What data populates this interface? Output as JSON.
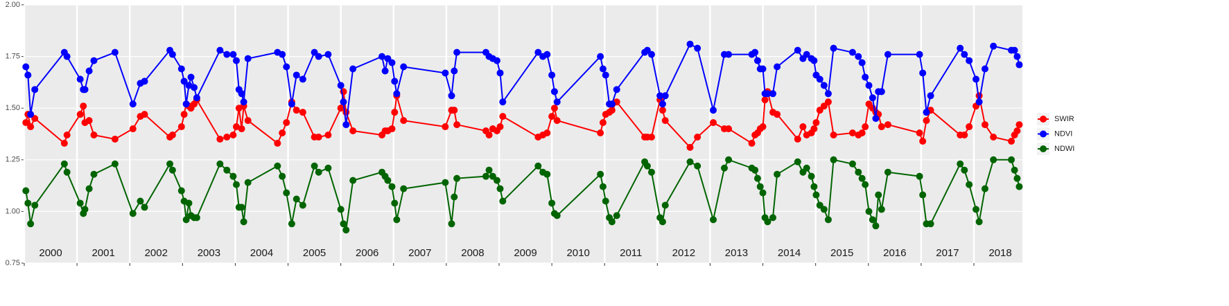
{
  "chart_data": {
    "type": "line",
    "x": [
      2000.03,
      2000.07,
      2000.12,
      2000.2,
      2000.76,
      2000.81,
      2001.06,
      2001.12,
      2001.15,
      2001.23,
      2001.32,
      2001.72,
      2002.06,
      2002.2,
      2002.28,
      2002.76,
      2002.81,
      2002.98,
      2003.03,
      2003.07,
      2003.12,
      2003.16,
      2003.22,
      2003.27,
      2003.71,
      2003.84,
      2003.96,
      2004.02,
      2004.07,
      2004.12,
      2004.16,
      2004.24,
      2004.8,
      2004.89,
      2004.97,
      2005.07,
      2005.16,
      2005.28,
      2005.5,
      2005.58,
      2005.76,
      2006.0,
      2006.05,
      2006.1,
      2006.23,
      2006.78,
      2006.84,
      2006.89,
      2006.97,
      2007.02,
      2007.06,
      2007.19,
      2007.98,
      2008.1,
      2008.15,
      2008.2,
      2008.75,
      2008.81,
      2008.88,
      2008.96,
      2009.02,
      2009.07,
      2009.74,
      2009.83,
      2009.91,
      2010.0,
      2010.05,
      2010.1,
      2010.92,
      2010.97,
      2011.02,
      2011.09,
      2011.14,
      2011.23,
      2011.76,
      2011.81,
      2011.89,
      2012.05,
      2012.1,
      2012.15,
      2012.62,
      2012.76,
      2013.06,
      2013.27,
      2013.35,
      2013.79,
      2013.85,
      2013.9,
      2013.95,
      2014.0,
      2014.04,
      2014.09,
      2014.19,
      2014.27,
      2014.66,
      2014.76,
      2014.83,
      2014.92,
      2014.97,
      2015.01,
      2015.08,
      2015.16,
      2015.24,
      2015.34,
      2015.7,
      2015.81,
      2015.88,
      2015.94,
      2016.01,
      2016.08,
      2016.14,
      2016.19,
      2016.25,
      2016.37,
      2016.97,
      2017.03,
      2017.1,
      2017.18,
      2017.74,
      2017.82,
      2017.91,
      2018.04,
      2018.1,
      2018.21,
      2018.37,
      2018.71,
      2018.77,
      2018.82,
      2018.86
    ],
    "series": [
      {
        "name": "SWIR",
        "color": "#ff0000",
        "values": [
          1.43,
          1.47,
          1.41,
          1.45,
          1.33,
          1.37,
          1.47,
          1.51,
          1.43,
          1.44,
          1.37,
          1.35,
          1.4,
          1.46,
          1.47,
          1.36,
          1.37,
          1.41,
          1.47,
          1.52,
          1.51,
          1.5,
          1.52,
          1.54,
          1.35,
          1.36,
          1.37,
          1.41,
          1.5,
          1.4,
          1.51,
          1.44,
          1.33,
          1.38,
          1.43,
          1.53,
          1.49,
          1.48,
          1.36,
          1.36,
          1.37,
          1.5,
          1.58,
          1.48,
          1.39,
          1.37,
          1.39,
          1.39,
          1.4,
          1.48,
          1.56,
          1.44,
          1.41,
          1.49,
          1.49,
          1.42,
          1.39,
          1.37,
          1.4,
          1.39,
          1.41,
          1.46,
          1.36,
          1.37,
          1.38,
          1.46,
          1.5,
          1.44,
          1.38,
          1.43,
          1.47,
          1.48,
          1.49,
          1.53,
          1.36,
          1.36,
          1.36,
          1.54,
          1.49,
          1.44,
          1.31,
          1.36,
          1.43,
          1.4,
          1.4,
          1.33,
          1.37,
          1.38,
          1.4,
          1.41,
          1.54,
          1.58,
          1.48,
          1.47,
          1.35,
          1.41,
          1.37,
          1.38,
          1.4,
          1.43,
          1.49,
          1.51,
          1.53,
          1.37,
          1.38,
          1.37,
          1.38,
          1.41,
          1.52,
          1.5,
          1.48,
          1.47,
          1.41,
          1.42,
          1.38,
          1.34,
          1.44,
          1.49,
          1.37,
          1.37,
          1.41,
          1.51,
          1.56,
          1.42,
          1.36,
          1.34,
          1.37,
          1.39,
          1.42
        ]
      },
      {
        "name": "NDVI",
        "color": "#0000ff",
        "values": [
          1.7,
          1.66,
          1.47,
          1.59,
          1.77,
          1.75,
          1.64,
          1.59,
          1.59,
          1.68,
          1.73,
          1.77,
          1.52,
          1.62,
          1.63,
          1.78,
          1.76,
          1.69,
          1.63,
          1.52,
          1.61,
          1.65,
          1.6,
          1.55,
          1.78,
          1.76,
          1.76,
          1.73,
          1.59,
          1.57,
          1.53,
          1.74,
          1.77,
          1.76,
          1.7,
          1.52,
          1.66,
          1.64,
          1.77,
          1.75,
          1.76,
          1.61,
          1.53,
          1.42,
          1.69,
          1.75,
          1.68,
          1.74,
          1.72,
          1.63,
          1.57,
          1.7,
          1.67,
          1.56,
          1.68,
          1.77,
          1.77,
          1.75,
          1.74,
          1.73,
          1.67,
          1.53,
          1.77,
          1.75,
          1.76,
          1.66,
          1.58,
          1.53,
          1.75,
          1.69,
          1.66,
          1.52,
          1.52,
          1.59,
          1.77,
          1.78,
          1.76,
          1.56,
          1.52,
          1.56,
          1.81,
          1.79,
          1.49,
          1.76,
          1.76,
          1.76,
          1.77,
          1.73,
          1.69,
          1.69,
          1.57,
          1.57,
          1.57,
          1.7,
          1.78,
          1.74,
          1.76,
          1.74,
          1.73,
          1.66,
          1.64,
          1.61,
          1.57,
          1.79,
          1.77,
          1.75,
          1.72,
          1.65,
          1.61,
          1.55,
          1.45,
          1.58,
          1.58,
          1.76,
          1.76,
          1.67,
          1.48,
          1.56,
          1.79,
          1.76,
          1.73,
          1.64,
          1.53,
          1.69,
          1.8,
          1.78,
          1.78,
          1.75,
          1.71
        ]
      },
      {
        "name": "NDWI",
        "color": "#006400",
        "values": [
          1.1,
          1.04,
          0.94,
          1.03,
          1.23,
          1.19,
          1.04,
          0.99,
          1.01,
          1.11,
          1.18,
          1.23,
          0.99,
          1.05,
          1.02,
          1.23,
          1.2,
          1.1,
          1.05,
          0.96,
          1.04,
          0.98,
          0.97,
          0.97,
          1.23,
          1.2,
          1.17,
          1.13,
          1.02,
          1.02,
          0.95,
          1.14,
          1.22,
          1.17,
          1.09,
          0.94,
          1.06,
          1.03,
          1.22,
          1.19,
          1.21,
          1.01,
          0.94,
          0.91,
          1.15,
          1.19,
          1.17,
          1.15,
          1.12,
          1.04,
          0.96,
          1.11,
          1.14,
          0.94,
          1.07,
          1.16,
          1.17,
          1.2,
          1.17,
          1.15,
          1.11,
          1.05,
          1.22,
          1.19,
          1.18,
          1.04,
          0.99,
          0.98,
          1.18,
          1.12,
          1.05,
          0.97,
          0.95,
          0.98,
          1.24,
          1.22,
          1.19,
          0.97,
          0.95,
          1.03,
          1.24,
          1.22,
          0.96,
          1.21,
          1.25,
          1.21,
          1.2,
          1.16,
          1.12,
          1.09,
          0.97,
          0.95,
          0.97,
          1.18,
          1.24,
          1.19,
          1.21,
          1.17,
          1.12,
          1.08,
          1.03,
          1.01,
          0.96,
          1.25,
          1.23,
          1.19,
          1.16,
          1.13,
          1.0,
          0.96,
          0.93,
          1.08,
          1.01,
          1.19,
          1.17,
          1.08,
          0.94,
          0.94,
          1.23,
          1.2,
          1.13,
          1.01,
          0.95,
          1.11,
          1.25,
          1.25,
          1.2,
          1.16,
          1.12
        ]
      }
    ],
    "xlim": [
      2000,
      2018.92
    ],
    "xticks": [
      2000,
      2001,
      2002,
      2003,
      2004,
      2005,
      2006,
      2007,
      2008,
      2009,
      2010,
      2011,
      2012,
      2013,
      2014,
      2015,
      2016,
      2017,
      2018
    ],
    "ylim": [
      0.75,
      2
    ],
    "yticks": [
      0.75,
      {
        "value": 1,
        "label": "1.00"
      },
      {
        "value": 1.25,
        "label": "1.25"
      },
      {
        "value": 1.5,
        "label": "1.50"
      },
      1.75,
      {
        "value": 2,
        "label": "2.00"
      }
    ],
    "grid": true,
    "legend": "right"
  }
}
